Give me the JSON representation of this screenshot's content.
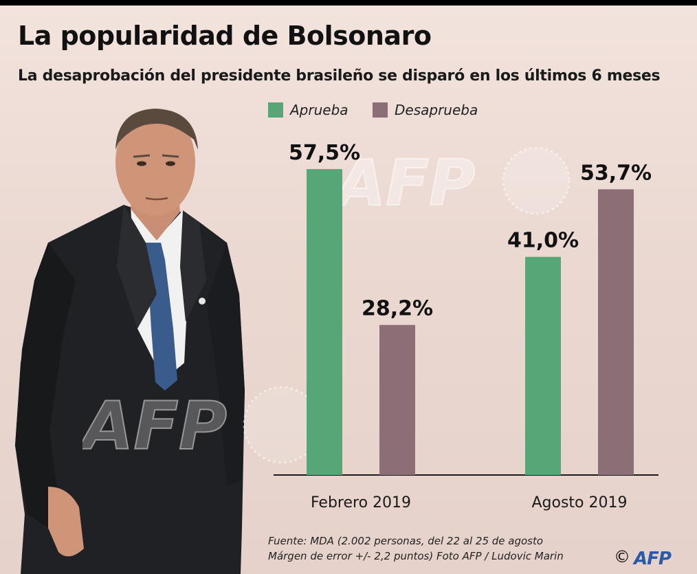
{
  "title": "La popularidad de Bolsonaro",
  "subtitle": "La desaprobación del presidente brasileño se disparó en los últimos 6 meses",
  "colors": {
    "approve": "#56a678",
    "disapprove": "#8c6f76",
    "background": "#ecdbd4"
  },
  "chart_data": {
    "type": "bar",
    "categories": [
      "Febrero 2019",
      "Agosto 2019"
    ],
    "series": [
      {
        "name": "Aprueba",
        "values": [
          57.5,
          41.0
        ],
        "labels": [
          "57,5%",
          "41,0%"
        ]
      },
      {
        "name": "Desaprueba",
        "values": [
          28.2,
          53.7
        ],
        "labels": [
          "28,2%",
          "53,7%"
        ]
      }
    ],
    "ylim": [
      0,
      75
    ],
    "grid": false,
    "legend": "top"
  },
  "source": {
    "line1": "Fuente: MDA (2.002 personas, del 22 al 25 de agosto",
    "line2": "Márgen de error +/- 2,2 puntos) Foto AFP / Ludovic Marin",
    "copyright": "©",
    "logo": "AFP"
  },
  "watermark": "AFP"
}
